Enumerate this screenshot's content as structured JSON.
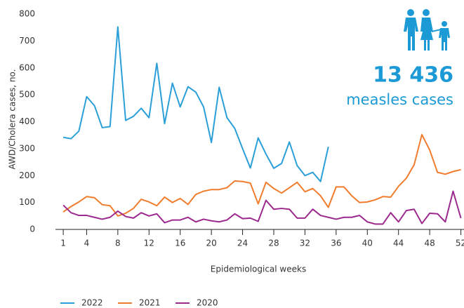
{
  "chart_data": {
    "type": "line",
    "y_label": "AWD/Cholera cases, no.",
    "x_label": "Epidemiological weeks",
    "annotation_value": "13 436",
    "annotation_text": "measles cases",
    "x": [
      1,
      2,
      3,
      4,
      5,
      6,
      7,
      8,
      9,
      10,
      11,
      12,
      13,
      14,
      15,
      16,
      17,
      18,
      19,
      20,
      21,
      22,
      23,
      24,
      25,
      26,
      27,
      28,
      29,
      30,
      31,
      32,
      33,
      34,
      35,
      36,
      37,
      38,
      39,
      40,
      41,
      42,
      43,
      44,
      45,
      46,
      47,
      48,
      49,
      50,
      51,
      52
    ],
    "series": [
      {
        "name": "2022",
        "color": "#2a9fd8",
        "values": [
          342,
          337,
          365,
          493,
          460,
          378,
          382,
          752,
          405,
          420,
          450,
          415,
          617,
          393,
          543,
          455,
          530,
          510,
          455,
          323,
          528,
          415,
          375,
          300,
          228,
          340,
          280,
          227,
          245,
          325,
          237,
          200,
          212,
          178,
          307,
          null,
          null,
          null,
          null,
          null,
          null,
          null,
          null,
          null,
          null,
          null,
          null,
          null,
          null,
          null,
          null,
          null
        ]
      },
      {
        "name": "2021",
        "color": "#f07c2e",
        "values": [
          65,
          85,
          102,
          122,
          118,
          92,
          88,
          50,
          60,
          78,
          112,
          102,
          88,
          120,
          100,
          115,
          93,
          130,
          142,
          148,
          148,
          155,
          180,
          178,
          172,
          95,
          175,
          152,
          135,
          155,
          175,
          140,
          152,
          125,
          82,
          158,
          158,
          125,
          100,
          102,
          110,
          122,
          120,
          160,
          190,
          240,
          352,
          295,
          212,
          205,
          215,
          222
        ]
      },
      {
        "name": "2020",
        "color": "#9c2a8e",
        "values": [
          90,
          62,
          52,
          52,
          45,
          38,
          45,
          68,
          48,
          42,
          62,
          50,
          58,
          25,
          35,
          35,
          45,
          28,
          38,
          32,
          28,
          35,
          58,
          40,
          42,
          30,
          108,
          75,
          78,
          75,
          42,
          42,
          75,
          52,
          45,
          38,
          45,
          45,
          52,
          28,
          20,
          20,
          62,
          28,
          70,
          75,
          22,
          60,
          58,
          28,
          142,
          42
        ]
      }
    ],
    "xlim": [
      0,
      52.4
    ],
    "xticks": [
      1,
      4,
      8,
      12,
      16,
      20,
      24,
      28,
      32,
      36,
      40,
      44,
      48,
      52
    ],
    "ylim": [
      0,
      800
    ],
    "yticks": [
      0,
      100,
      200,
      300,
      400,
      500,
      600,
      700,
      800
    ],
    "legend": "bottom-left"
  }
}
